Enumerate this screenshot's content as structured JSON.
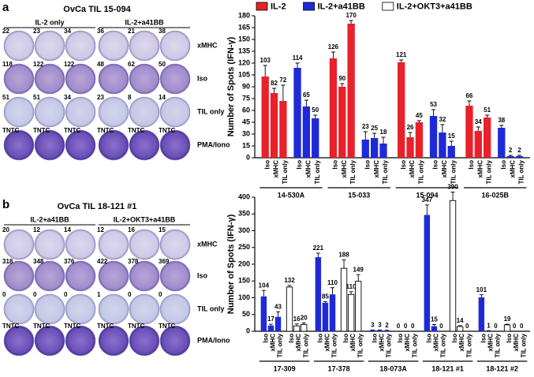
{
  "legend": [
    {
      "name": "IL-2",
      "color": "#e8212a"
    },
    {
      "name": "IL-2+a41BB",
      "color": "#1e2ad8"
    },
    {
      "name": "IL-2+OKT3+a41BB",
      "color": "#ffffff"
    }
  ],
  "panels": [
    {
      "letter": "a",
      "wells": {
        "title": "OvCa TIL 15-094",
        "groups": [
          "IL-2 only",
          "IL-2+a41BB"
        ],
        "rows": [
          "xMHC",
          "Iso",
          "TIL only",
          "PMA/Iono"
        ],
        "counts": [
          [
            "22",
            "23",
            "34",
            "36",
            "21",
            "38"
          ],
          [
            "118",
            "122",
            "122",
            "48",
            "62",
            "50"
          ],
          [
            "51",
            "51",
            "34",
            "23",
            "8",
            "14"
          ],
          [
            "TNTC",
            "TNTC",
            "TNTC",
            "TNTC",
            "TNTC",
            "TNTC"
          ]
        ]
      }
    },
    {
      "letter": "b",
      "wells": {
        "title": "OvCa TIL 18-121 #1",
        "groups": [
          "IL-2+a41BB",
          "IL-2+OKT3+a41BB"
        ],
        "rows": [
          "xMHC",
          "Iso",
          "TIL only",
          "PMA/Iono"
        ],
        "counts": [
          [
            "20",
            "12",
            "14",
            "12",
            "16",
            "15"
          ],
          [
            "318",
            "348",
            "376",
            "422",
            "378",
            "369"
          ],
          [
            "0",
            "0",
            "0",
            "1",
            "0",
            "0"
          ],
          [
            "TNTC",
            "TNTC",
            "TNTC",
            "TNTC",
            "TNTC",
            "TNTC"
          ]
        ]
      }
    }
  ],
  "chart_data": [
    {
      "type": "bar",
      "y_label": "Number of Spots (IFN-γ)",
      "ylim": [
        0,
        180
      ],
      "yticks": [
        0,
        15,
        30,
        45,
        60,
        75,
        90,
        105,
        120,
        135,
        150,
        165,
        180
      ],
      "conditions": [
        "Iso",
        "xMHC",
        "TIL only"
      ],
      "categories": [
        "14-530A",
        "15-033",
        "15-094",
        "16-025B"
      ],
      "series": [
        {
          "color": "#e8212a",
          "values": [
            [
              103,
              82,
              72
            ],
            [
              126,
              90,
              170
            ],
            [
              121,
              26,
              45
            ],
            [
              66,
              34,
              51
            ]
          ],
          "errors": [
            [
              14,
              6,
              20
            ],
            [
              8,
              4,
              4
            ],
            [
              3,
              6,
              2
            ],
            [
              6,
              5,
              3
            ]
          ]
        },
        {
          "color": "#1e2ad8",
          "values": [
            [
              114,
              65,
              50
            ],
            [
              23,
              25,
              18
            ],
            [
              53,
              32,
              15
            ],
            [
              38,
              2,
              2
            ]
          ],
          "errors": [
            [
              6,
              8,
              4
            ],
            [
              10,
              6,
              8
            ],
            [
              8,
              10,
              6
            ],
            [
              3,
              1,
              1
            ]
          ]
        }
      ]
    },
    {
      "type": "bar",
      "y_label": "Number of Spots (IFN-γ)",
      "ylim": [
        0,
        400
      ],
      "yticks": [
        0,
        50,
        100,
        150,
        200,
        250,
        300,
        350,
        400
      ],
      "conditions": [
        "Iso",
        "xMHC",
        "TIL only"
      ],
      "categories": [
        "17-309",
        "17-378",
        "18-073A",
        "18-121 #1",
        "18-121 #2"
      ],
      "series": [
        {
          "color": "#1e2ad8",
          "values": [
            [
              104,
              17,
              43
            ],
            [
              221,
              85,
              110
            ],
            [
              3,
              3,
              2
            ],
            [
              347,
              15,
              0
            ],
            [
              101,
              1,
              0
            ]
          ],
          "errors": [
            [
              18,
              4,
              15
            ],
            [
              12,
              3,
              20
            ],
            [
              1,
              1,
              1
            ],
            [
              30,
              5,
              0
            ],
            [
              8,
              1,
              0
            ]
          ]
        },
        {
          "color": "#ffffff",
          "values": [
            [
              132,
              16,
              20
            ],
            [
              188,
              110,
              149
            ],
            [
              0,
              0,
              0
            ],
            [
              390,
              14,
              0
            ],
            [
              19,
              0,
              0
            ]
          ],
          "errors": [
            [
              5,
              6,
              5
            ],
            [
              25,
              8,
              20
            ],
            [
              0,
              0,
              0
            ],
            [
              25,
              3,
              0
            ],
            [
              2,
              0,
              0
            ]
          ]
        }
      ]
    }
  ]
}
